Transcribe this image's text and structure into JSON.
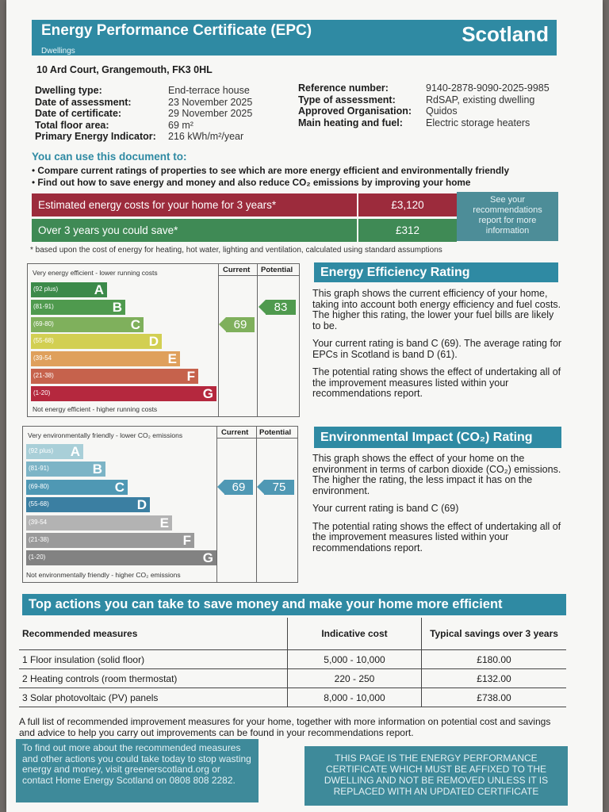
{
  "header": {
    "title": "Energy Performance Certificate (EPC)",
    "subtitle": "Dwellings",
    "country": "Scotland"
  },
  "address": "10 Ard Court, Grangemouth, FK3 0HL",
  "details_left": [
    {
      "label": "Dwelling type:",
      "value": "End-terrace house"
    },
    {
      "label": "Date of assessment:",
      "value": "23 November 2025"
    },
    {
      "label": "Date of certificate:",
      "value": "29 November 2025"
    },
    {
      "label": "Total floor area:",
      "value": "69 m²"
    },
    {
      "label": "Primary Energy Indicator:",
      "value": "216 kWh/m²/year"
    }
  ],
  "details_right": [
    {
      "label": "Reference number:",
      "value": "9140-2878-9090-2025-9985"
    },
    {
      "label": "Type of assessment:",
      "value": "RdSAP, existing dwelling"
    },
    {
      "label": "Approved Organisation:",
      "value": "Quidos"
    },
    {
      "label": "Main heating and fuel:",
      "value": "Electric storage heaters"
    }
  ],
  "usage": {
    "heading": "You can use this document to:",
    "bullets": [
      "Compare current ratings of properties to see which are more energy efficient and environmentally friendly",
      "Find out how to save energy and money and also reduce CO₂ emissions by improving your home"
    ]
  },
  "costs": {
    "estimated_label": "Estimated energy costs for your home for 3 years*",
    "estimated_value": "£3,120",
    "save_label": "Over 3 years you could save*",
    "save_value": "£312",
    "see_recs": "See your recommendations report for more information",
    "footnote": "* based upon the cost of energy for heating, hot water, lighting and ventilation, calculated using standard assumptions"
  },
  "colors": {
    "accent": "#2f8aa3",
    "cost_red": "#9c2b3c",
    "cost_green": "#3f8a55"
  },
  "energy_chart": {
    "top_note": "Very energy efficient - lower running costs",
    "bottom_note": "Not energy efficient - higher running costs",
    "current_header": "Current",
    "potential_header": "Potential",
    "bands": [
      {
        "range": "(92 plus)",
        "letter": "A",
        "color": "#3c8a4a"
      },
      {
        "range": "(81-91)",
        "letter": "B",
        "color": "#4f9a4e"
      },
      {
        "range": "(69-80)",
        "letter": "C",
        "color": "#7fb05c"
      },
      {
        "range": "(55-68)",
        "letter": "D",
        "color": "#d2cf52"
      },
      {
        "range": "(39-54",
        "letter": "E",
        "color": "#dfa05c"
      },
      {
        "range": "(21-38)",
        "letter": "F",
        "color": "#c6624c"
      },
      {
        "range": "(1-20)",
        "letter": "G",
        "color": "#b5283e"
      }
    ],
    "current": 69,
    "potential": 83,
    "current_color": "#7fb05c",
    "potential_color": "#4f9a4e"
  },
  "energy_rating": {
    "heading": "Energy Efficiency Rating",
    "p1": "This graph shows the current efficiency of your home, taking into account both energy efficiency and fuel costs. The higher this rating, the lower your fuel bills are likely to be.",
    "p2": "Your current rating is band C (69). The average rating for EPCs in Scotland is band D (61).",
    "p3": "The potential rating shows the effect of undertaking all of the improvement measures listed within your recommendations report."
  },
  "env_chart": {
    "top_note": "Very environmentally friendly - lower CO₂ emissions",
    "bottom_note": "Not environmentally friendly - higher CO₂ emissions",
    "current_header": "Current",
    "potential_header": "Potential",
    "bands": [
      {
        "range": "(92 plus)",
        "letter": "A",
        "color": "#a9cfd8"
      },
      {
        "range": "(81-91)",
        "letter": "B",
        "color": "#7cb4c6"
      },
      {
        "range": "(69-80)",
        "letter": "C",
        "color": "#4f98b4"
      },
      {
        "range": "(55-68)",
        "letter": "D",
        "color": "#3b7fa2"
      },
      {
        "range": "(39-54",
        "letter": "E",
        "color": "#b3b3b3"
      },
      {
        "range": "(21-38)",
        "letter": "F",
        "color": "#9a9a9a"
      },
      {
        "range": "(1-20)",
        "letter": "G",
        "color": "#828282"
      }
    ],
    "current": 69,
    "potential": 75,
    "current_color": "#4f98b4",
    "potential_color": "#4f98b4"
  },
  "env_rating": {
    "heading": "Environmental Impact (CO₂) Rating",
    "p1": "This graph shows the effect of your home on the environment in terms of carbon dioxide (CO₂) emissions. The higher the rating, the less impact it has on the environment.",
    "p2": "Your current rating is band C (69)",
    "p3": "The potential rating shows the effect of undertaking all of the improvement measures listed within your recommendations report."
  },
  "actions": {
    "heading": "Top actions you can take to save money and make your home more efficient",
    "columns": [
      "Recommended measures",
      "Indicative cost",
      "Typical savings over 3 years"
    ],
    "rows": [
      {
        "measure": "1 Floor insulation (solid floor)",
        "cost": "5,000 - 10,000",
        "savings": "£180.00"
      },
      {
        "measure": "2 Heating controls (room thermostat)",
        "cost": "220 - 250",
        "savings": "£132.00"
      },
      {
        "measure": "3 Solar photovoltaic (PV) panels",
        "cost": "8,000 - 10,000",
        "savings": "£738.00"
      }
    ],
    "footer": "A full list of recommended improvement measures for your home, together with more information on potential cost and savings and advice to help you carry out improvements can be found in your recommendations report."
  },
  "bottom": {
    "left": "To find out more about the recommended measures and other actions you could take today to stop wasting energy and money, visit greenerscotland.org or contact Home Energy Scotland on 0808 808 2282.",
    "right": "THIS PAGE IS THE ENERGY PERFORMANCE CERTIFICATE WHICH MUST BE AFFIXED TO THE DWELLING AND NOT BE REMOVED UNLESS IT IS REPLACED WITH AN UPDATED CERTIFICATE"
  }
}
